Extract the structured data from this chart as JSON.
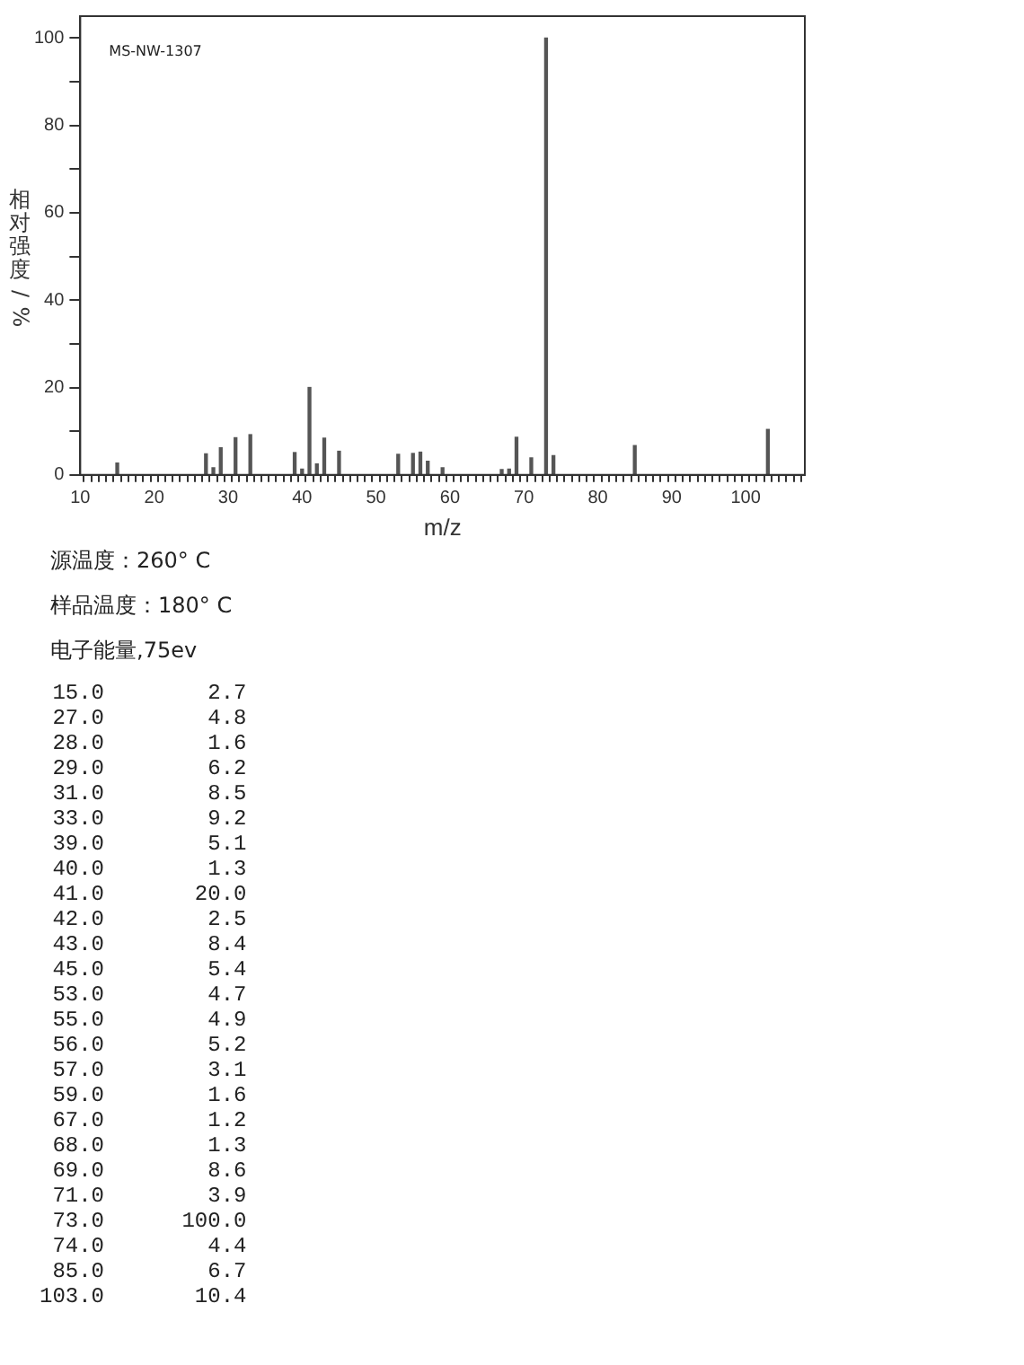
{
  "chart_data": {
    "type": "bar",
    "xlabel": "m/z",
    "ylabel": "相对强度/%",
    "annotations": [
      "MS-NW-1307",
      "源温度：260° C",
      "样品温度：180° C",
      "电子能量,75ev",
      " 15.0        2.7",
      " 27.0        4.8",
      " 28.0        1.6",
      " 29.0        6.2",
      " 31.0        8.5",
      " 33.0        9.2",
      " 39.0        5.1",
      " 40.0        1.3",
      " 41.0       20.0",
      " 42.0        2.5",
      " 43.0        8.4",
      " 45.0        5.4",
      " 53.0        4.7",
      " 55.0        4.9",
      " 56.0        5.2",
      " 57.0        3.1",
      " 59.0        1.6",
      " 67.0        1.2",
      " 68.0        1.3",
      " 69.0        8.6",
      " 71.0        3.9",
      " 73.0      100.0",
      " 74.0        4.4",
      " 85.0        6.7",
      "103.0       10.4"
    ],
    "x": [
      15,
      27,
      28,
      29,
      31,
      33,
      39,
      40,
      41,
      42,
      43,
      45,
      53,
      55,
      56,
      57,
      59,
      67,
      68,
      69,
      71,
      73,
      74,
      85,
      103
    ],
    "values": [
      2.7,
      4.8,
      1.6,
      6.2,
      8.5,
      9.2,
      5.1,
      1.3,
      20.0,
      2.5,
      8.4,
      5.4,
      4.7,
      4.9,
      5.2,
      3.1,
      1.6,
      1.2,
      1.3,
      8.6,
      3.9,
      100.0,
      4.4,
      6.7,
      10.4
    ],
    "color": "#555555",
    "grid": false,
    "legend": false,
    "xlim": [
      10,
      108
    ],
    "ylim": [
      0,
      105
    ],
    "xticks": [
      10,
      {
        "value": 11,
        "label": null
      },
      {
        "value": 12,
        "label": null
      },
      {
        "value": 13,
        "label": null
      },
      {
        "value": 14,
        "label": null
      },
      {
        "value": 15,
        "label": null
      },
      {
        "value": 16,
        "label": null
      },
      {
        "value": 17,
        "label": null
      },
      {
        "value": 18,
        "label": null
      },
      {
        "value": 19,
        "label": null
      },
      20,
      {
        "value": 21,
        "label": null
      },
      {
        "value": 22,
        "label": null
      },
      {
        "value": 23,
        "label": null
      },
      {
        "value": 24,
        "label": null
      },
      {
        "value": 25,
        "label": null
      },
      {
        "value": 26,
        "label": null
      },
      {
        "value": 27,
        "label": null
      },
      {
        "value": 28,
        "label": null
      },
      {
        "value": 29,
        "label": null
      },
      30,
      {
        "value": 31,
        "label": null
      },
      {
        "value": 32,
        "label": null
      },
      {
        "value": 33,
        "label": null
      },
      {
        "value": 34,
        "label": null
      },
      {
        "value": 35,
        "label": null
      },
      {
        "value": 36,
        "label": null
      },
      {
        "value": 37,
        "label": null
      },
      {
        "value": 38,
        "label": null
      },
      {
        "value": 39,
        "label": null
      },
      40,
      {
        "value": 41,
        "label": null
      },
      {
        "value": 42,
        "label": null
      },
      {
        "value": 43,
        "label": null
      },
      {
        "value": 44,
        "label": null
      },
      {
        "value": 45,
        "label": null
      },
      {
        "value": 46,
        "label": null
      },
      {
        "value": 47,
        "label": null
      },
      {
        "value": 48,
        "label": null
      },
      {
        "value": 49,
        "label": null
      },
      50,
      {
        "value": 51,
        "label": null
      },
      {
        "value": 52,
        "label": null
      },
      {
        "value": 53,
        "label": null
      },
      {
        "value": 54,
        "label": null
      },
      {
        "value": 55,
        "label": null
      },
      {
        "value": 56,
        "label": null
      },
      {
        "value": 57,
        "label": null
      },
      {
        "value": 58,
        "label": null
      },
      {
        "value": 59,
        "label": null
      },
      60,
      {
        "value": 61,
        "label": null
      },
      {
        "value": 62,
        "label": null
      },
      {
        "value": 63,
        "label": null
      },
      {
        "value": 64,
        "label": null
      },
      {
        "value": 65,
        "label": null
      },
      {
        "value": 66,
        "label": null
      },
      {
        "value": 67,
        "label": null
      },
      {
        "value": 68,
        "label": null
      },
      {
        "value": 69,
        "label": null
      },
      70,
      {
        "value": 71,
        "label": null
      },
      {
        "value": 72,
        "label": null
      },
      {
        "value": 73,
        "label": null
      },
      {
        "value": 74,
        "label": null
      },
      {
        "value": 75,
        "label": null
      },
      {
        "value": 76,
        "label": null
      },
      {
        "value": 77,
        "label": null
      },
      {
        "value": 78,
        "label": null
      },
      {
        "value": 79,
        "label": null
      },
      80,
      {
        "value": 81,
        "label": null
      },
      {
        "value": 82,
        "label": null
      },
      {
        "value": 83,
        "label": null
      },
      {
        "value": 84,
        "label": null
      },
      {
        "value": 85,
        "label": null
      },
      {
        "value": 86,
        "label": null
      },
      {
        "value": 87,
        "label": null
      },
      {
        "value": 88,
        "label": null
      },
      {
        "value": 89,
        "label": null
      },
      90,
      {
        "value": 91,
        "label": null
      },
      {
        "value": 92,
        "label": null
      },
      {
        "value": 93,
        "label": null
      },
      {
        "value": 94,
        "label": null
      },
      {
        "value": 95,
        "label": null
      },
      {
        "value": 96,
        "label": null
      },
      {
        "value": 97,
        "label": null
      },
      {
        "value": 98,
        "label": null
      },
      {
        "value": 99,
        "label": null
      },
      100,
      {
        "value": 101,
        "label": null
      },
      {
        "value": 102,
        "label": null
      },
      {
        "value": 103,
        "label": null
      },
      {
        "value": 104,
        "label": null
      },
      {
        "value": 105,
        "label": null
      },
      {
        "value": 106,
        "label": null
      },
      {
        "value": 107,
        "label": null
      }
    ],
    "yticks": [
      0,
      {
        "value": 10,
        "label": null
      },
      20,
      {
        "value": 30,
        "label": null
      },
      40,
      {
        "value": 50,
        "label": null
      },
      60,
      {
        "value": 70,
        "label": null
      },
      80,
      {
        "value": 90,
        "label": null
      },
      100
    ]
  }
}
